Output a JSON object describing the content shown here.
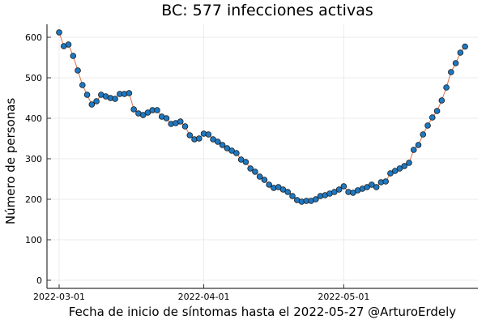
{
  "chart_data": {
    "type": "line",
    "title": "BC:  577 infecciones activas",
    "xlabel": "Fecha de inicio de síntomas hasta el 2022-05-27 @ArturoErdely",
    "ylabel": "Número de personas",
    "x_start": "2022-03-01",
    "x_end": "2022-05-27",
    "x_ticks": [
      "2022-03-01",
      "2022-04-01",
      "2022-05-01"
    ],
    "y_ticks": [
      0,
      100,
      200,
      300,
      400,
      500,
      600
    ],
    "ylim": [
      -20,
      630
    ],
    "grid": true,
    "legend": false,
    "marker": "circle",
    "line_color": "#e26f46",
    "marker_color": "#1f78c1",
    "series": [
      {
        "name": "infecciones activas",
        "values": [
          612,
          578,
          582,
          554,
          518,
          482,
          458,
          434,
          442,
          458,
          454,
          450,
          448,
          460,
          460,
          462,
          422,
          412,
          408,
          414,
          420,
          420,
          404,
          400,
          386,
          388,
          392,
          380,
          358,
          348,
          350,
          362,
          360,
          348,
          342,
          334,
          326,
          320,
          314,
          298,
          292,
          276,
          268,
          256,
          248,
          236,
          228,
          230,
          224,
          218,
          208,
          198,
          194,
          196,
          196,
          200,
          208,
          210,
          214,
          218,
          224,
          232,
          218,
          216,
          222,
          226,
          230,
          236,
          230,
          242,
          244,
          264,
          270,
          276,
          282,
          290,
          322,
          334,
          360,
          382,
          402,
          418,
          444,
          476,
          514,
          536,
          562,
          577
        ]
      }
    ]
  }
}
